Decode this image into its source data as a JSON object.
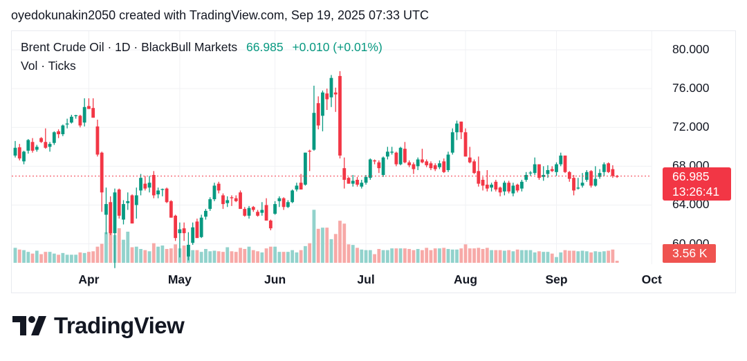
{
  "header": {
    "credit": "oyedokunakin2050 created with TradingView.com, Sep 19, 2025 07:33 UTC"
  },
  "legend": {
    "symbol": "Brent Crude Oil · 1D · BlackBull Markets",
    "last": "66.985",
    "change": "+0.010 (+0.01%)",
    "indicator": "Vol · Ticks"
  },
  "price_box": {
    "price": "66.985",
    "countdown": "13:26:41"
  },
  "volume_box": {
    "value": "3.56 K"
  },
  "logo": {
    "text": "TradingView"
  },
  "colors": {
    "up": "#089981",
    "down": "#f23645",
    "vol_up": "#92d2cc",
    "vol_down": "#f7a9a7",
    "grid": "#f0f1f4"
  },
  "chart_data": {
    "type": "candlestick",
    "title": "Brent Crude Oil · 1D · BlackBull Markets",
    "ylim": [
      57.3,
      82.5
    ],
    "yticks": [
      {
        "value": 80,
        "label": "80.000"
      },
      {
        "value": 76,
        "label": "76.000"
      },
      {
        "value": 72,
        "label": "72.000"
      },
      {
        "value": 68,
        "label": "68.000"
      },
      {
        "value": 64,
        "label": "64.000"
      },
      {
        "value": 60,
        "label": "60.000"
      }
    ],
    "xticks": [
      {
        "bar_index": 17,
        "label": "Apr"
      },
      {
        "bar_index": 38,
        "label": "May"
      },
      {
        "bar_index": 60,
        "label": "Jun"
      },
      {
        "bar_index": 81,
        "label": "Jul"
      },
      {
        "bar_index": 104,
        "label": "Aug"
      },
      {
        "bar_index": 125,
        "label": "Sep"
      },
      {
        "bar_index": 147,
        "label": "Oct"
      }
    ],
    "last_price": 66.985,
    "ohlc": [
      [
        69.1,
        70.6,
        68.9,
        69.9
      ],
      [
        69.95,
        70.3,
        68.6,
        68.8
      ],
      [
        68.5,
        69.6,
        68.2,
        69.5
      ],
      [
        69.6,
        70.8,
        69.3,
        70.7
      ],
      [
        70.5,
        70.9,
        69.4,
        69.6
      ],
      [
        69.7,
        70.2,
        69.5,
        70.0
      ],
      [
        70.9,
        71.0,
        70.4,
        70.5
      ],
      [
        70.5,
        71.9,
        69.8,
        69.9
      ],
      [
        70.0,
        70.5,
        69.5,
        70.3
      ],
      [
        70.4,
        71.6,
        70.2,
        71.5
      ],
      [
        71.6,
        71.8,
        70.9,
        71.3
      ],
      [
        71.3,
        72.3,
        71.1,
        72.2
      ],
      [
        72.3,
        72.9,
        71.9,
        72.4
      ],
      [
        72.5,
        73.3,
        72.4,
        73.1
      ],
      [
        73.2,
        73.3,
        72.9,
        73.25
      ],
      [
        73.2,
        73.3,
        72.0,
        72.2
      ],
      [
        72.5,
        75.0,
        72.1,
        74.1
      ],
      [
        74.2,
        75.0,
        73.9,
        73.9
      ],
      [
        74.0,
        75.0,
        73.0,
        73.0
      ],
      [
        72.1,
        72.8,
        69.0,
        69.2
      ],
      [
        69.4,
        69.5,
        63.3,
        65.3
      ],
      [
        63.0,
        65.8,
        61.0,
        64.1
      ],
      [
        64.3,
        64.9,
        60.9,
        61.1
      ],
      [
        61.1,
        65.7,
        57.5,
        65.3
      ],
      [
        65.6,
        65.7,
        62.6,
        62.9
      ],
      [
        62.5,
        64.5,
        62.0,
        64.1
      ],
      [
        64.2,
        65.3,
        63.5,
        64.4
      ],
      [
        65.0,
        65.1,
        62.1,
        62.1
      ],
      [
        64.0,
        65.8,
        62.6,
        65.0
      ],
      [
        65.5,
        67.2,
        65.0,
        66.8
      ],
      [
        66.2,
        67.0,
        65.5,
        65.7
      ],
      [
        65.8,
        67.0,
        65.3,
        66.3
      ],
      [
        67.1,
        67.5,
        64.7,
        65.0
      ],
      [
        65.1,
        65.8,
        64.7,
        65.5
      ],
      [
        65.6,
        65.7,
        64.9,
        65.65
      ],
      [
        65.7,
        65.8,
        64.2,
        64.3
      ],
      [
        64.4,
        64.5,
        62.7,
        62.7
      ],
      [
        62.9,
        63.0,
        60.3,
        60.6
      ],
      [
        61.1,
        62.2,
        58.6,
        61.5
      ],
      [
        61.6,
        62.2,
        60.3,
        61.1
      ],
      [
        58.7,
        61.2,
        58.3,
        59.9
      ],
      [
        60.1,
        62.2,
        59.9,
        61.7
      ],
      [
        62.3,
        62.6,
        60.6,
        60.6
      ],
      [
        60.7,
        63.0,
        60.6,
        62.7
      ],
      [
        62.8,
        63.6,
        62.5,
        63.4
      ],
      [
        63.6,
        64.8,
        63.4,
        64.6
      ],
      [
        64.6,
        66.3,
        64.4,
        66.0
      ],
      [
        66.2,
        66.4,
        65.2,
        65.5
      ],
      [
        65.0,
        65.2,
        63.6,
        64.1
      ],
      [
        64.2,
        64.9,
        63.8,
        64.5
      ],
      [
        64.8,
        65.0,
        63.9,
        64.7
      ],
      [
        64.7,
        65.0,
        64.3,
        64.4
      ],
      [
        65.3,
        65.5,
        63.6,
        63.6
      ],
      [
        63.6,
        63.8,
        62.8,
        62.9
      ],
      [
        62.9,
        63.9,
        62.6,
        63.7
      ],
      [
        63.8,
        63.9,
        63.3,
        63.5
      ],
      [
        63.3,
        63.5,
        62.8,
        62.9
      ],
      [
        63.2,
        64.3,
        62.9,
        63.5
      ],
      [
        64.0,
        64.7,
        62.4,
        62.4
      ],
      [
        62.4,
        62.5,
        61.4,
        61.6
      ],
      [
        63.1,
        64.4,
        63.0,
        64.1
      ],
      [
        64.4,
        64.9,
        63.8,
        64.7
      ],
      [
        64.7,
        64.8,
        63.5,
        63.8
      ],
      [
        63.8,
        64.5,
        63.7,
        64.3
      ],
      [
        64.3,
        65.6,
        64.2,
        65.5
      ],
      [
        65.6,
        66.3,
        65.4,
        66.0
      ],
      [
        66.3,
        67.2,
        65.6,
        65.6
      ],
      [
        66.1,
        69.4,
        66.0,
        69.4
      ],
      [
        69.6,
        69.7,
        67.5,
        69.5
      ],
      [
        69.7,
        76.3,
        69.6,
        73.5
      ],
      [
        74.5,
        75.2,
        71.8,
        72.2
      ],
      [
        73.2,
        75.8,
        71.6,
        75.6
      ],
      [
        75.5,
        76.0,
        73.8,
        74.9
      ],
      [
        75.1,
        77.4,
        74.1,
        77.1
      ],
      [
        75.6,
        76.1,
        73.6,
        75.4
      ],
      [
        77.3,
        77.8,
        68.8,
        69.1
      ],
      [
        67.8,
        68.9,
        65.7,
        66.6
      ],
      [
        66.8,
        66.9,
        66.2,
        66.2
      ],
      [
        66.2,
        67.1,
        65.9,
        66.5
      ],
      [
        66.6,
        66.9,
        65.9,
        66.1
      ],
      [
        65.9,
        66.6,
        65.7,
        66.3
      ],
      [
        66.3,
        67.1,
        66.1,
        66.9
      ],
      [
        66.8,
        68.8,
        66.6,
        68.7
      ],
      [
        68.6,
        68.7,
        68.2,
        68.5
      ],
      [
        68.4,
        68.6,
        67.3,
        67.8
      ],
      [
        67.1,
        69.0,
        66.9,
        68.9
      ],
      [
        69.0,
        70.0,
        68.7,
        69.5
      ],
      [
        69.4,
        70.0,
        69.2,
        69.5
      ],
      [
        69.4,
        69.5,
        68.0,
        68.2
      ],
      [
        68.2,
        70.0,
        68.1,
        69.9
      ],
      [
        69.8,
        70.5,
        68.3,
        68.4
      ],
      [
        68.4,
        68.6,
        67.9,
        68.1
      ],
      [
        68.2,
        68.4,
        67.2,
        67.7
      ],
      [
        68.0,
        68.9,
        67.6,
        68.7
      ],
      [
        68.7,
        69.8,
        68.3,
        68.4
      ],
      [
        68.5,
        68.7,
        67.9,
        68.1
      ],
      [
        68.3,
        68.5,
        67.6,
        67.8
      ],
      [
        68.1,
        68.3,
        67.5,
        67.7
      ],
      [
        67.9,
        68.6,
        67.7,
        68.3
      ],
      [
        68.5,
        68.8,
        67.3,
        67.4
      ],
      [
        67.6,
        69.5,
        67.4,
        69.2
      ],
      [
        69.4,
        71.9,
        69.2,
        71.5
      ],
      [
        71.5,
        72.7,
        70.7,
        72.4
      ],
      [
        72.6,
        72.6,
        70.8,
        71.5
      ],
      [
        71.5,
        71.9,
        69.0,
        69.0
      ],
      [
        68.9,
        70.0,
        68.3,
        68.4
      ],
      [
        68.5,
        68.7,
        67.2,
        67.3
      ],
      [
        67.5,
        69.0,
        65.9,
        66.2
      ],
      [
        66.6,
        66.9,
        65.5,
        66.0
      ],
      [
        66.1,
        67.6,
        65.4,
        65.7
      ],
      [
        65.8,
        66.3,
        65.4,
        66.1
      ],
      [
        66.4,
        66.6,
        65.4,
        65.6
      ],
      [
        65.8,
        65.9,
        64.9,
        65.3
      ],
      [
        65.4,
        66.5,
        65.0,
        66.3
      ],
      [
        66.3,
        66.5,
        65.2,
        65.4
      ],
      [
        65.2,
        66.3,
        64.9,
        66.0
      ],
      [
        66.1,
        66.2,
        65.3,
        65.5
      ],
      [
        65.7,
        66.6,
        65.4,
        66.4
      ],
      [
        66.6,
        67.4,
        66.4,
        67.1
      ],
      [
        67.3,
        67.5,
        67.0,
        67.35
      ],
      [
        67.3,
        68.9,
        67.1,
        68.2
      ],
      [
        68.2,
        68.2,
        66.6,
        66.8
      ],
      [
        66.9,
        68.0,
        66.5,
        67.1
      ],
      [
        67.2,
        68.1,
        66.8,
        67.6
      ],
      [
        67.7,
        68.0,
        67.4,
        67.5
      ],
      [
        67.4,
        68.4,
        67.0,
        68.2
      ],
      [
        68.2,
        69.4,
        68.0,
        69.1
      ],
      [
        69.1,
        69.1,
        67.3,
        67.4
      ],
      [
        67.4,
        67.5,
        66.4,
        66.7
      ],
      [
        66.8,
        67.1,
        65.0,
        65.5
      ],
      [
        65.7,
        66.8,
        65.6,
        65.8
      ],
      [
        66.0,
        67.3,
        65.8,
        66.3
      ],
      [
        66.6,
        67.6,
        66.4,
        67.4
      ],
      [
        67.5,
        67.6,
        65.8,
        66.0
      ],
      [
        66.0,
        68.0,
        65.9,
        66.7
      ],
      [
        66.9,
        67.7,
        66.7,
        67.3
      ],
      [
        67.4,
        68.4,
        67.0,
        68.2
      ],
      [
        68.3,
        68.4,
        67.3,
        67.4
      ],
      [
        67.7,
        68.1,
        66.8,
        67.0
      ],
      [
        66.995,
        67.1,
        66.8,
        66.985
      ]
    ],
    "volume_k": [
      26,
      23,
      22,
      19,
      16,
      21,
      15,
      19,
      19,
      16,
      14,
      17,
      14,
      14,
      14,
      18,
      17,
      19,
      20,
      28,
      33,
      53,
      65,
      48,
      60,
      40,
      54,
      27,
      28,
      24,
      22,
      20,
      34,
      28,
      30,
      24,
      25,
      32,
      25,
      30,
      26,
      22,
      22,
      19,
      24,
      20,
      21,
      20,
      19,
      27,
      20,
      19,
      26,
      24,
      28,
      22,
      20,
      18,
      25,
      28,
      28,
      19,
      19,
      19,
      22,
      18,
      22,
      29,
      34,
      92,
      59,
      61,
      61,
      41,
      50,
      73,
      68,
      32,
      31,
      26,
      23,
      22,
      22,
      15,
      24,
      22,
      22,
      25,
      25,
      25,
      25,
      24,
      22,
      24,
      22,
      26,
      22,
      25,
      25,
      26,
      24,
      23,
      23,
      25,
      32,
      25,
      25,
      26,
      24,
      26,
      22,
      22,
      22,
      21,
      22,
      20,
      23,
      22,
      22,
      22,
      18,
      20,
      19,
      19,
      16,
      10,
      18,
      22,
      21,
      21,
      20,
      21,
      20,
      18,
      20,
      19,
      20,
      21,
      23,
      3.56
    ]
  }
}
